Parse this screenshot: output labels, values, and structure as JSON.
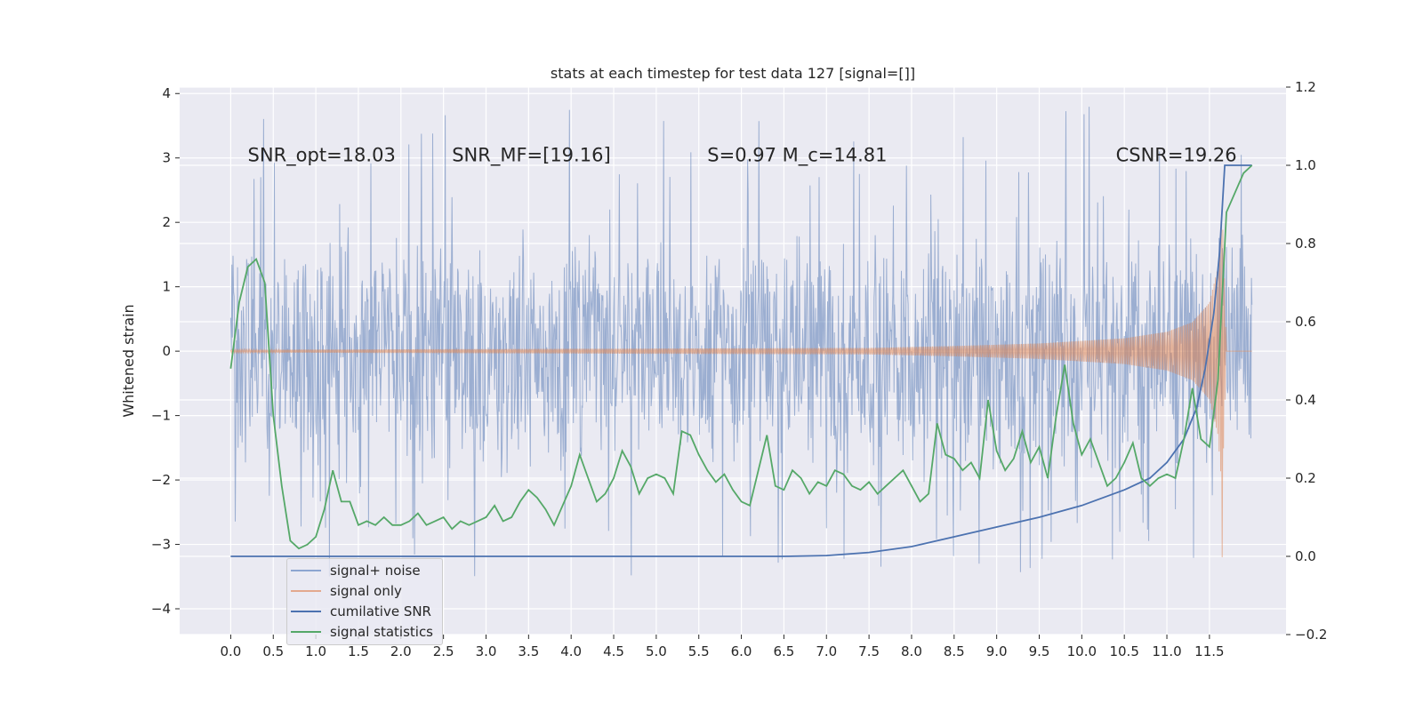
{
  "chart_data": {
    "type": "line",
    "title": "stats at each timestep for test data 127 [signal=[]]",
    "ylabel": "Whitened strain",
    "xlabel": "",
    "xlim": [
      -0.6,
      12.4
    ],
    "ylim": [
      -4.4,
      4.1
    ],
    "y2lim": [
      -0.2,
      1.2
    ],
    "grid": true,
    "x_ticks": [
      "0.0",
      "0.5",
      "1.0",
      "1.5",
      "2.0",
      "2.5",
      "3.0",
      "3.5",
      "4.0",
      "4.5",
      "5.0",
      "5.5",
      "6.0",
      "6.5",
      "7.0",
      "7.5",
      "8.0",
      "8.5",
      "9.0",
      "9.5",
      "10.0",
      "10.5",
      "11.0",
      "11.5"
    ],
    "y_ticks": [
      "4",
      "3",
      "2",
      "1",
      "0",
      "−1",
      "−2",
      "−3",
      "−4"
    ],
    "y2_ticks": [
      "1.2",
      "1.0",
      "0.8",
      "0.6",
      "0.4",
      "0.2",
      "0.0",
      "−0.2"
    ],
    "annotations": [
      {
        "text": "SNR_opt=18.03",
        "x": 0.2,
        "y": 2.95
      },
      {
        "text": "SNR_MF=[19.16]",
        "x": 2.6,
        "y": 2.95
      },
      {
        "text": "S=0.97   M_c=14.81",
        "x": 5.6,
        "y": 2.95
      },
      {
        "text": "CSNR=19.26",
        "x": 10.4,
        "y": 2.95
      }
    ],
    "legend_position": "lower-left",
    "series": [
      {
        "name": "signal+ noise",
        "color": "#4c72b0",
        "axis": "left",
        "style": "dense noise trace, alpha 0.5",
        "noise_envelope": {
          "x": [
            0.0,
            12.0
          ],
          "typical_range": [
            -1.6,
            1.6
          ],
          "spike_range": [
            -3.5,
            3.8
          ]
        }
      },
      {
        "name": "signal only",
        "color": "#dd8452",
        "axis": "left",
        "style": "chirp, amplitude growing until merger",
        "envelope": {
          "x": [
            0.0,
            7.5,
            8.5,
            9.5,
            10.5,
            11.0,
            11.3,
            11.5,
            11.6,
            11.65,
            11.7
          ],
          "amp": [
            0.02,
            0.05,
            0.08,
            0.12,
            0.2,
            0.3,
            0.45,
            0.75,
            1.3,
            2.2,
            0.0
          ]
        },
        "merger_dip": {
          "x": 11.65,
          "y": -3.2
        }
      },
      {
        "name": "cumilative SNR",
        "color": "#4c72b0",
        "axis": "right",
        "x": [
          0.0,
          6.5,
          7.0,
          7.5,
          8.0,
          8.5,
          9.0,
          9.5,
          10.0,
          10.5,
          10.8,
          11.0,
          11.2,
          11.35,
          11.45,
          11.55,
          11.62,
          11.68,
          12.0
        ],
        "values": [
          0.0,
          0.0,
          0.002,
          0.01,
          0.025,
          0.05,
          0.075,
          0.1,
          0.13,
          0.17,
          0.2,
          0.24,
          0.3,
          0.38,
          0.48,
          0.62,
          0.78,
          1.0,
          1.0
        ]
      },
      {
        "name": "signal statistics",
        "color": "#55a868",
        "axis": "right",
        "x": [
          0.0,
          0.1,
          0.2,
          0.3,
          0.4,
          0.5,
          0.6,
          0.7,
          0.8,
          0.9,
          1.0,
          1.1,
          1.2,
          1.3,
          1.4,
          1.5,
          1.6,
          1.7,
          1.8,
          1.9,
          2.0,
          2.1,
          2.2,
          2.3,
          2.4,
          2.5,
          2.6,
          2.7,
          2.8,
          2.9,
          3.0,
          3.1,
          3.2,
          3.3,
          3.4,
          3.5,
          3.6,
          3.7,
          3.8,
          3.9,
          4.0,
          4.1,
          4.2,
          4.3,
          4.4,
          4.5,
          4.6,
          4.7,
          4.8,
          4.9,
          5.0,
          5.1,
          5.2,
          5.3,
          5.4,
          5.5,
          5.6,
          5.7,
          5.8,
          5.9,
          6.0,
          6.1,
          6.2,
          6.3,
          6.4,
          6.5,
          6.6,
          6.7,
          6.8,
          6.9,
          7.0,
          7.1,
          7.2,
          7.3,
          7.4,
          7.5,
          7.6,
          7.7,
          7.8,
          7.9,
          8.0,
          8.1,
          8.2,
          8.3,
          8.4,
          8.5,
          8.6,
          8.7,
          8.8,
          8.9,
          9.0,
          9.1,
          9.2,
          9.3,
          9.4,
          9.5,
          9.6,
          9.7,
          9.8,
          9.9,
          10.0,
          10.1,
          10.2,
          10.3,
          10.4,
          10.5,
          10.6,
          10.7,
          10.8,
          10.9,
          11.0,
          11.1,
          11.2,
          11.3,
          11.4,
          11.5,
          11.6,
          11.7,
          11.8,
          11.9,
          12.0
        ],
        "values": [
          0.48,
          0.65,
          0.74,
          0.76,
          0.7,
          0.36,
          0.18,
          0.04,
          0.02,
          0.03,
          0.05,
          0.12,
          0.22,
          0.14,
          0.14,
          0.08,
          0.09,
          0.08,
          0.1,
          0.08,
          0.08,
          0.09,
          0.11,
          0.08,
          0.09,
          0.1,
          0.07,
          0.09,
          0.08,
          0.09,
          0.1,
          0.13,
          0.09,
          0.1,
          0.14,
          0.17,
          0.15,
          0.12,
          0.08,
          0.13,
          0.18,
          0.26,
          0.2,
          0.14,
          0.16,
          0.2,
          0.27,
          0.23,
          0.16,
          0.2,
          0.21,
          0.2,
          0.16,
          0.32,
          0.31,
          0.26,
          0.22,
          0.19,
          0.21,
          0.17,
          0.14,
          0.13,
          0.22,
          0.31,
          0.18,
          0.17,
          0.22,
          0.2,
          0.16,
          0.19,
          0.18,
          0.22,
          0.21,
          0.18,
          0.17,
          0.19,
          0.16,
          0.18,
          0.2,
          0.22,
          0.18,
          0.14,
          0.16,
          0.34,
          0.26,
          0.25,
          0.22,
          0.24,
          0.2,
          0.4,
          0.27,
          0.22,
          0.25,
          0.32,
          0.24,
          0.28,
          0.2,
          0.36,
          0.49,
          0.34,
          0.26,
          0.3,
          0.24,
          0.18,
          0.2,
          0.24,
          0.29,
          0.2,
          0.18,
          0.2,
          0.21,
          0.2,
          0.3,
          0.43,
          0.3,
          0.28,
          0.45,
          0.88,
          0.93,
          0.98,
          1.0
        ]
      }
    ]
  }
}
